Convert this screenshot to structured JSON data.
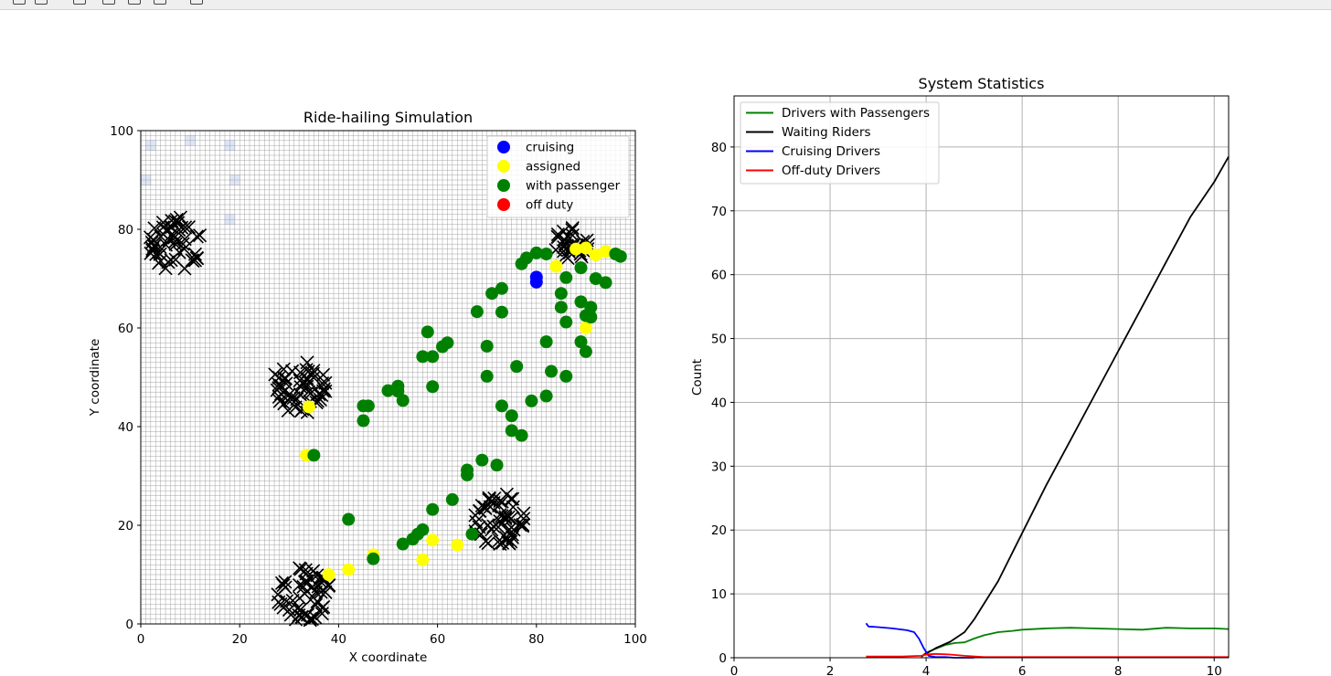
{
  "toolbar": {
    "icons": [
      "back-icon",
      "forward-icon",
      "pan-icon",
      "zoom-icon",
      "subplots-icon",
      "save-icon"
    ]
  },
  "colors": {
    "cruising": "#0000ff",
    "assigned": "#ffff00",
    "with_passenger": "#008000",
    "off_duty": "#ff0000",
    "rider": "#000000",
    "grid": "#b0b0b0"
  },
  "chart_data": [
    {
      "type": "scatter",
      "title": "Ride-hailing Simulation",
      "xlabel": "X coordinate",
      "ylabel": "Y coordinate",
      "xlim": [
        0,
        100
      ],
      "ylim": [
        0,
        100
      ],
      "xticks": [
        0,
        20,
        40,
        60,
        80,
        100
      ],
      "yticks": [
        0,
        20,
        40,
        60,
        80,
        100
      ],
      "legend": {
        "position": "top-right",
        "entries": [
          {
            "label": "cruising",
            "color": "#0000ff"
          },
          {
            "label": "assigned",
            "color": "#ffff00"
          },
          {
            "label": "with passenger",
            "color": "#008000"
          },
          {
            "label": "off duty",
            "color": "#ff0000"
          }
        ]
      },
      "demand_heatmap_cells": [
        [
          2,
          97
        ],
        [
          10,
          98
        ],
        [
          18,
          97
        ],
        [
          1,
          90
        ],
        [
          19,
          90
        ],
        [
          18,
          82
        ]
      ],
      "rider_clusters": [
        {
          "center": [
            7,
            77
          ],
          "count": 55,
          "spread": 5.5
        },
        {
          "center": [
            87,
            77
          ],
          "count": 30,
          "spread": 3.5
        },
        {
          "center": [
            32,
            48
          ],
          "count": 55,
          "spread": 5.5
        },
        {
          "center": [
            33,
            6
          ],
          "count": 55,
          "spread": 5.5
        },
        {
          "center": [
            72.5,
            21
          ],
          "count": 55,
          "spread": 5.5
        }
      ],
      "series": [
        {
          "name": "cruising",
          "color": "#0000ff",
          "points": [
            [
              80,
              70.3
            ],
            [
              80,
              69.3
            ]
          ]
        },
        {
          "name": "assigned",
          "color": "#ffff00",
          "points": [
            [
              84,
              72.5
            ],
            [
              88,
              76
            ],
            [
              90,
              76.2
            ],
            [
              92,
              74.8
            ],
            [
              94,
              75.5
            ],
            [
              90,
              60
            ],
            [
              34,
              44
            ],
            [
              33.5,
              34.2
            ],
            [
              38,
              10
            ],
            [
              42,
              11
            ],
            [
              47,
              14
            ],
            [
              57,
              13
            ],
            [
              59,
              17
            ],
            [
              64,
              16
            ]
          ]
        },
        {
          "name": "with passenger",
          "color": "#008000",
          "points": [
            [
              82,
              75
            ],
            [
              80,
              75.2
            ],
            [
              78,
              74.2
            ],
            [
              77,
              73
            ],
            [
              89,
              72.2
            ],
            [
              86,
              70.2
            ],
            [
              92,
              70
            ],
            [
              94,
              69.2
            ],
            [
              85,
              67
            ],
            [
              96,
              75
            ],
            [
              97,
              74.5
            ],
            [
              73,
              68
            ],
            [
              71,
              67
            ],
            [
              91,
              64.2
            ],
            [
              89,
              65.3
            ],
            [
              85,
              64.2
            ],
            [
              68,
              63.3
            ],
            [
              73,
              63.2
            ],
            [
              86,
              61.2
            ],
            [
              90,
              62.5
            ],
            [
              91,
              62.2
            ],
            [
              58,
              59.2
            ],
            [
              62,
              57
            ],
            [
              61,
              56.2
            ],
            [
              70,
              56.3
            ],
            [
              89,
              57.2
            ],
            [
              90,
              55.2
            ],
            [
              82,
              57.2
            ],
            [
              57,
              54.2
            ],
            [
              59,
              54.2
            ],
            [
              76,
              52.2
            ],
            [
              83,
              51.2
            ],
            [
              86,
              50.2
            ],
            [
              70,
              50.2
            ],
            [
              52,
              48.2
            ],
            [
              50,
              47.3
            ],
            [
              52,
              47.2
            ],
            [
              59,
              48.1
            ],
            [
              53,
              45.3
            ],
            [
              45,
              44.2
            ],
            [
              46,
              44.2
            ],
            [
              45,
              41.2
            ],
            [
              79,
              45.2
            ],
            [
              82,
              46.2
            ],
            [
              73,
              44.2
            ],
            [
              75,
              42.2
            ],
            [
              75,
              39.2
            ],
            [
              77,
              38.2
            ],
            [
              35,
              34.2
            ],
            [
              69,
              33.2
            ],
            [
              72,
              32.2
            ],
            [
              66,
              31.2
            ],
            [
              66,
              30.2
            ],
            [
              63,
              25.2
            ],
            [
              59,
              23.2
            ],
            [
              42,
              21.2
            ],
            [
              57,
              19.1
            ],
            [
              55,
              17.2
            ],
            [
              56,
              18.2
            ],
            [
              53,
              16.2
            ],
            [
              67,
              18.2
            ],
            [
              47,
              13.2
            ]
          ]
        },
        {
          "name": "off duty",
          "color": "#ff0000",
          "points": []
        }
      ]
    },
    {
      "type": "line",
      "title": "System Statistics",
      "xlabel": "",
      "ylabel": "Count",
      "xlim": [
        0,
        10.3
      ],
      "ylim": [
        0,
        88
      ],
      "xticks": [
        0,
        2,
        4,
        6,
        8,
        10
      ],
      "yticks": [
        0,
        10,
        20,
        30,
        40,
        50,
        60,
        70,
        80
      ],
      "grid": true,
      "legend": {
        "position": "top-left",
        "entries": [
          {
            "label": "Drivers with Passengers",
            "color": "#008000"
          },
          {
            "label": "Waiting Riders",
            "color": "#000000"
          },
          {
            "label": "Cruising Drivers",
            "color": "#0000ff"
          },
          {
            "label": "Off-duty Drivers",
            "color": "#ff0000"
          }
        ]
      },
      "series": [
        {
          "name": "Drivers with Passengers",
          "color": "#008000",
          "x": [
            3.9,
            4.0,
            4.2,
            4.4,
            4.6,
            4.8,
            5.0,
            5.2,
            5.5,
            5.8,
            6.0,
            6.5,
            7.0,
            7.5,
            8.0,
            8.5,
            9.0,
            9.5,
            10.0,
            10.3
          ],
          "y": [
            0.1,
            0.8,
            1.4,
            2.0,
            2.3,
            2.4,
            3.0,
            3.5,
            4.0,
            4.2,
            4.4,
            4.6,
            4.7,
            4.6,
            4.5,
            4.4,
            4.7,
            4.6,
            4.6,
            4.5
          ]
        },
        {
          "name": "Waiting Riders",
          "color": "#000000",
          "x": [
            3.9,
            4.2,
            4.5,
            4.8,
            5.0,
            5.5,
            6.0,
            6.5,
            7.0,
            7.5,
            8.0,
            8.5,
            9.0,
            9.5,
            10.0,
            10.3
          ],
          "y": [
            0.2,
            1.5,
            2.5,
            4.0,
            6.0,
            12.0,
            19.5,
            27.0,
            34.0,
            41.0,
            48.0,
            55.0,
            62.0,
            69.0,
            74.5,
            78.5
          ]
        },
        {
          "name": "Cruising Drivers",
          "color": "#0000ff",
          "x": [
            2.75,
            2.8,
            3.0,
            3.3,
            3.6,
            3.75,
            3.85,
            3.95,
            4.05,
            4.2,
            4.4,
            4.6,
            5.0
          ],
          "y": [
            5.4,
            4.9,
            4.8,
            4.6,
            4.3,
            4.0,
            3.0,
            1.5,
            0.3,
            0.1,
            0.1,
            0.0,
            0.0
          ]
        },
        {
          "name": "Off-duty Drivers",
          "color": "#ff0000",
          "x": [
            2.75,
            3.5,
            3.9,
            4.0,
            4.2,
            4.5,
            4.8,
            5.2,
            6.0,
            7.0,
            8.0,
            9.0,
            10.3
          ],
          "y": [
            0.2,
            0.2,
            0.3,
            0.5,
            0.6,
            0.5,
            0.3,
            0.1,
            0.1,
            0.1,
            0.1,
            0.1,
            0.1
          ]
        }
      ]
    }
  ]
}
